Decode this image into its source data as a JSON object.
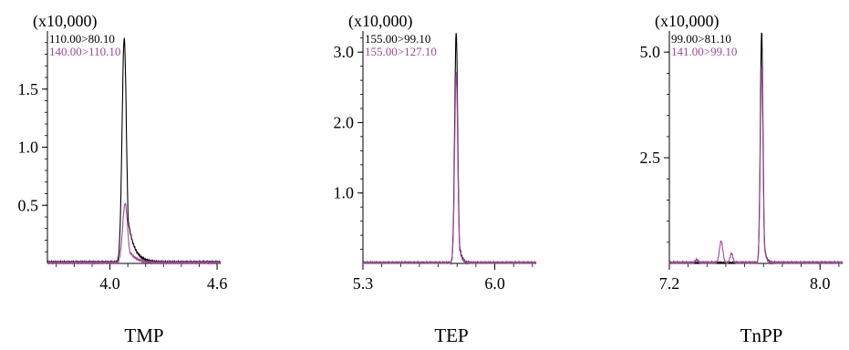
{
  "figure": {
    "captions": [
      "TMP",
      "TEP",
      "TnPP"
    ]
  },
  "chart_data": [
    {
      "type": "line",
      "title": "TMP",
      "scale_label": "(x10,000)",
      "xlim": [
        3.65,
        4.62
      ],
      "ylim": [
        0,
        2.0
      ],
      "x_ticks": [
        4.0,
        4.6
      ],
      "x_tick_labels": [
        "4.0",
        "4.6"
      ],
      "y_ticks": [
        0.5,
        1.0,
        1.5
      ],
      "y_tick_labels": [
        "0.5",
        "1.0",
        "1.5"
      ],
      "grid": false,
      "legend": "top-left",
      "series": [
        {
          "name": "110.00>80.10",
          "color": "#000000",
          "peaks": [
            {
              "center": 4.08,
              "height": 1.93,
              "sigma": 0.012,
              "tail": 0.035
            }
          ],
          "baseline": 0.01
        },
        {
          "name": "140.00>110.10",
          "color": "#a0499c",
          "peaks": [
            {
              "center": 4.085,
              "height": 0.51,
              "sigma": 0.014,
              "tail": 0.04
            }
          ],
          "baseline": 0.005
        }
      ]
    },
    {
      "type": "line",
      "title": "TEP",
      "scale_label": "(x10,000)",
      "xlim": [
        5.3,
        6.22
      ],
      "ylim": [
        0,
        3.3
      ],
      "x_ticks": [
        5.3,
        6.0
      ],
      "x_tick_labels": [
        "5.3",
        "6.0"
      ],
      "y_ticks": [
        1.0,
        2.0,
        3.0
      ],
      "y_tick_labels": [
        "1.0",
        "2.0",
        "3.0"
      ],
      "grid": false,
      "legend": "top-left",
      "series": [
        {
          "name": "155.00>99.10",
          "color": "#000000",
          "peaks": [
            {
              "center": 5.795,
              "height": 3.28,
              "sigma": 0.008,
              "tail": 0.012
            }
          ],
          "baseline": 0.005
        },
        {
          "name": "155.00>127.10",
          "color": "#a0499c",
          "peaks": [
            {
              "center": 5.795,
              "height": 2.72,
              "sigma": 0.008,
              "tail": 0.012
            }
          ],
          "baseline": 0.003
        }
      ]
    },
    {
      "type": "line",
      "title": "TnPP",
      "scale_label": "(x10,000)",
      "xlim": [
        7.2,
        8.12
      ],
      "ylim": [
        0,
        5.5
      ],
      "x_ticks": [
        7.2,
        8.0
      ],
      "x_tick_labels": [
        "7.2",
        "8.0"
      ],
      "y_ticks": [
        2.5,
        5.0
      ],
      "y_tick_labels": [
        "2.5",
        "5.0"
      ],
      "grid": false,
      "legend": "top-left",
      "series": [
        {
          "name": "99.00>81.10",
          "color": "#000000",
          "peaks": [
            {
              "center": 7.69,
              "height": 5.47,
              "sigma": 0.007,
              "tail": 0.01
            }
          ],
          "baseline": 0.01
        },
        {
          "name": "141.00>99.10",
          "color": "#a0499c",
          "peaks": [
            {
              "center": 7.69,
              "height": 4.65,
              "sigma": 0.007,
              "tail": 0.01
            },
            {
              "center": 7.475,
              "height": 0.52,
              "sigma": 0.009,
              "tail": 0.005
            },
            {
              "center": 7.53,
              "height": 0.22,
              "sigma": 0.008,
              "tail": 0.005
            },
            {
              "center": 7.345,
              "height": 0.08,
              "sigma": 0.008,
              "tail": 0.004
            }
          ],
          "baseline": 0.01
        }
      ]
    }
  ]
}
